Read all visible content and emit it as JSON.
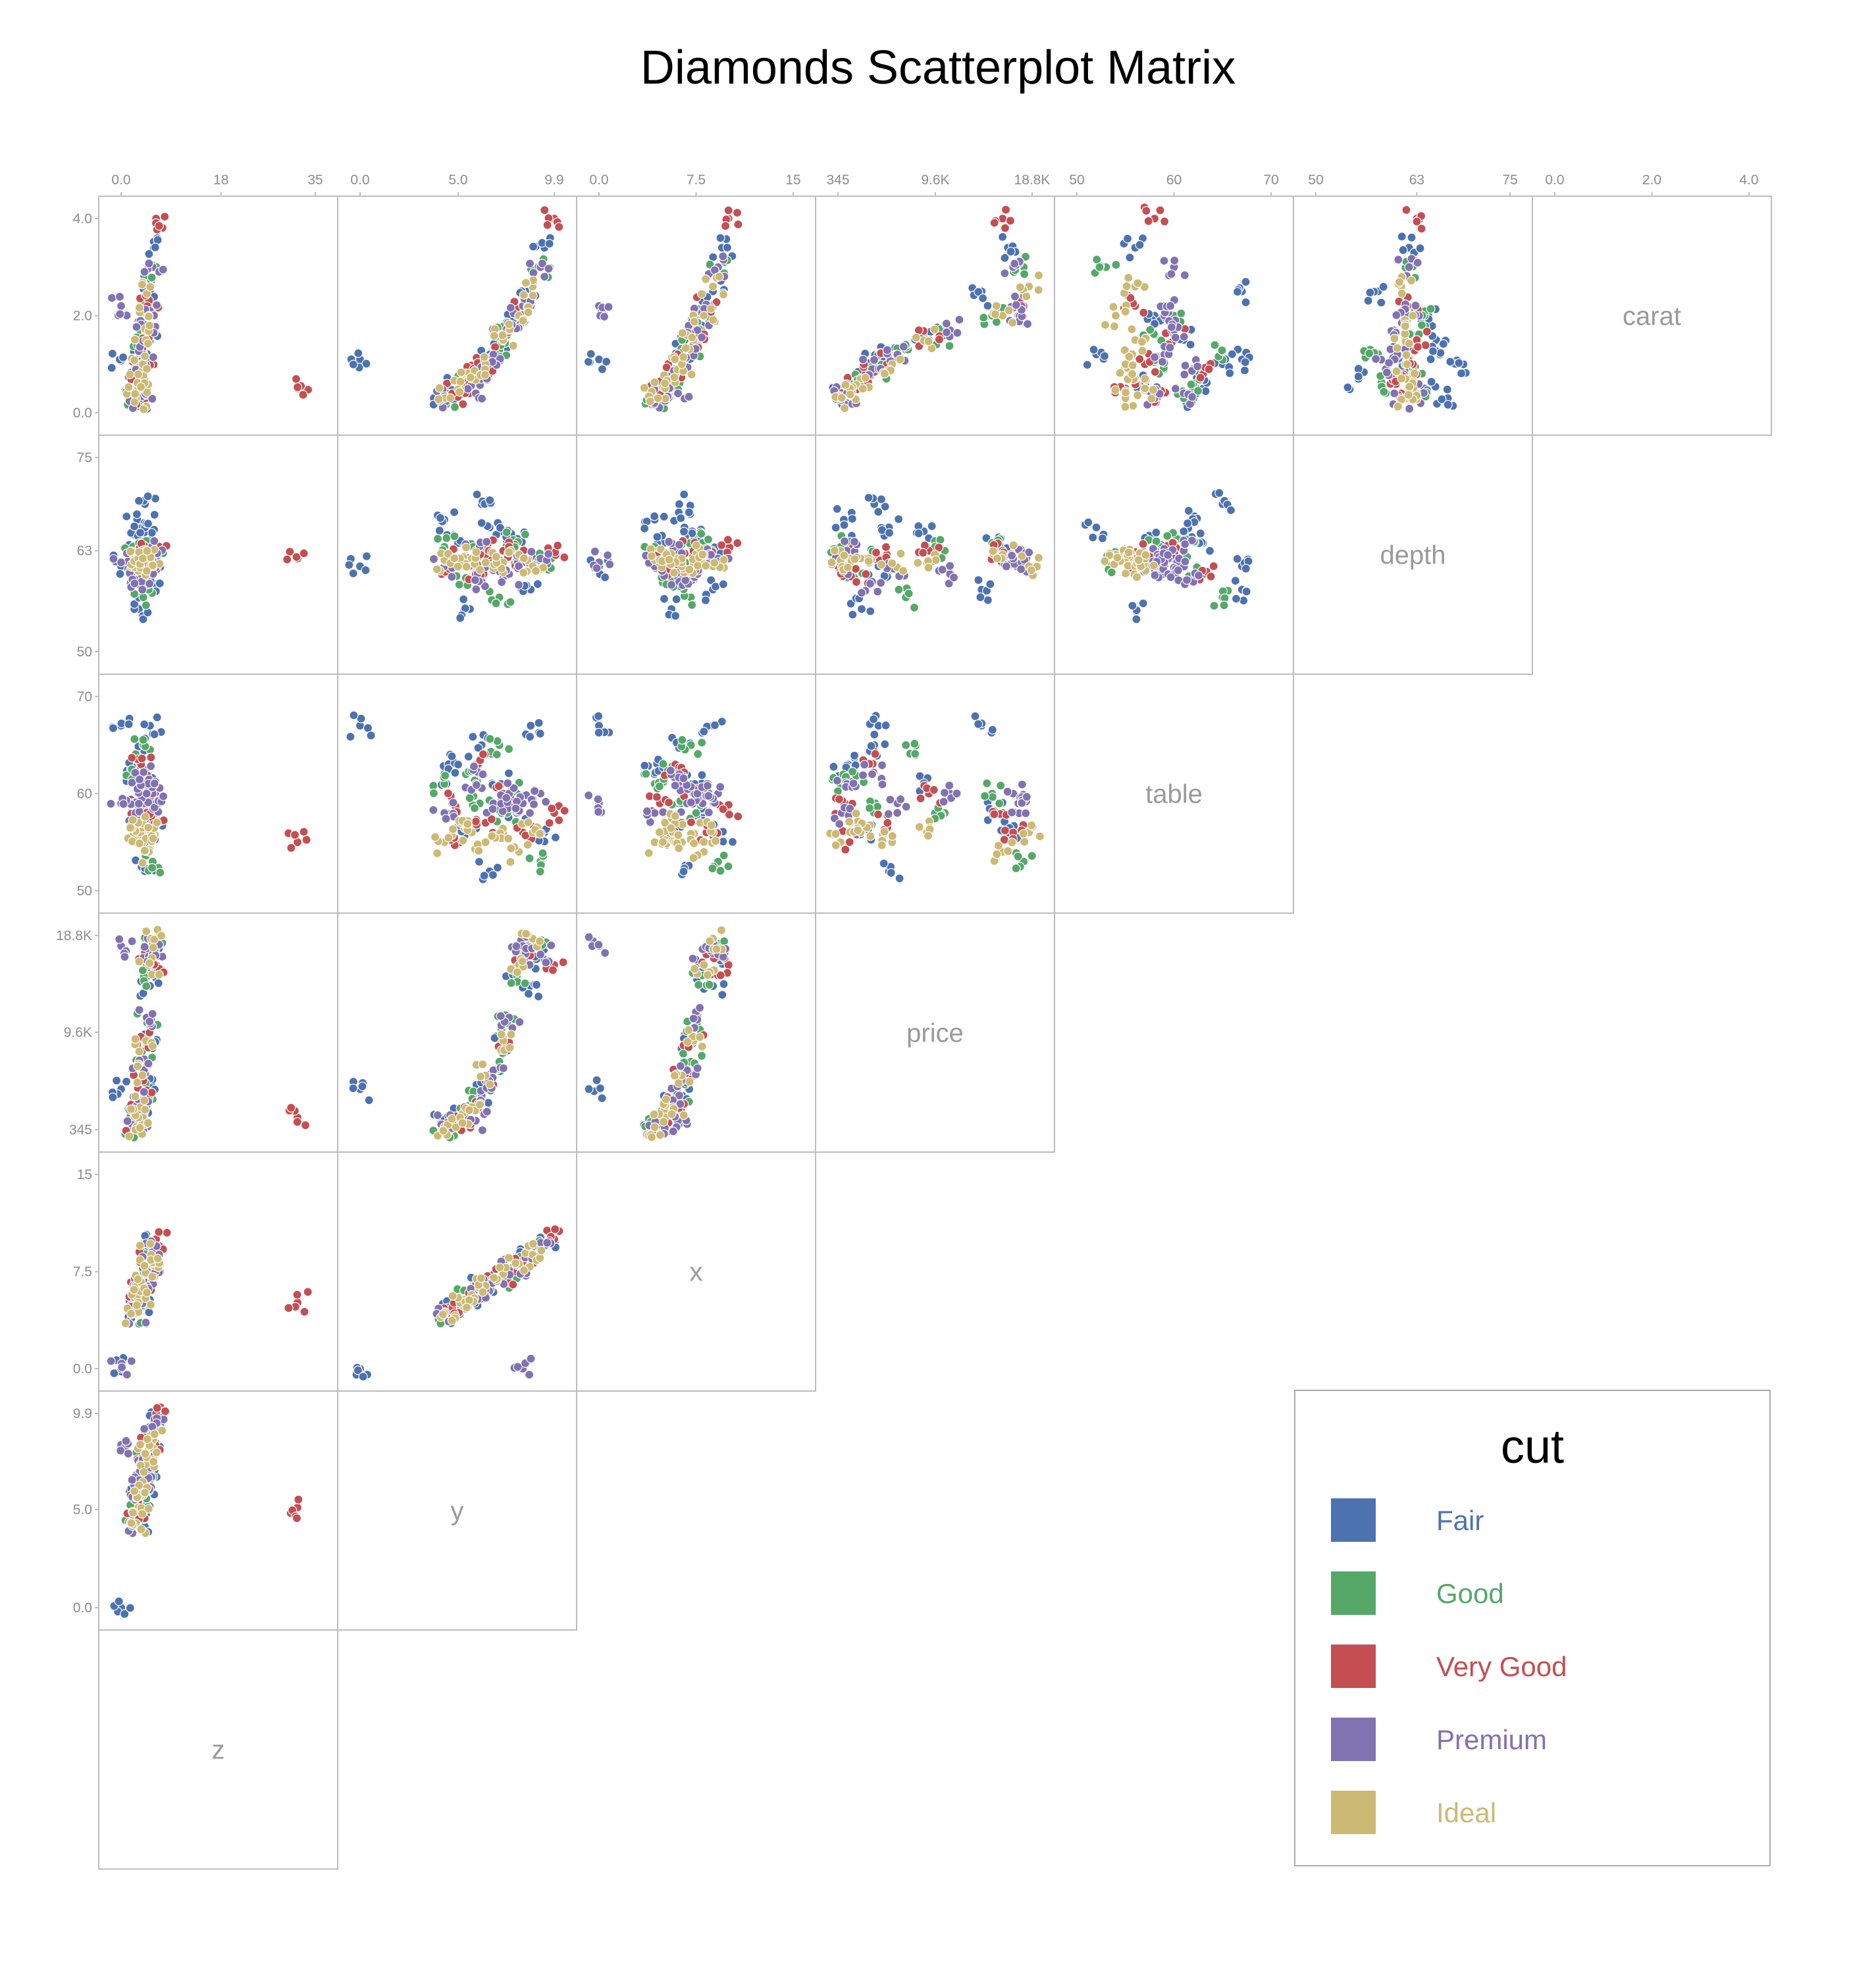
{
  "title": "Diamonds Scatterplot Matrix",
  "colors": {
    "Fair": "#4c72b0",
    "Good": "#55a868",
    "Very Good": "#c44e52",
    "Premium": "#8172b2",
    "Ideal": "#ccb974"
  },
  "chart_data": {
    "type": "scatter",
    "title": "Diamonds Scatterplot Matrix",
    "variables": [
      "carat",
      "depth",
      "table",
      "price",
      "x",
      "y",
      "z"
    ],
    "axes": {
      "carat": {
        "range": [
          0,
          4.0
        ],
        "ticks": [
          {
            "v": 0,
            "label": "0.0"
          },
          {
            "v": 2.0,
            "label": "2.0"
          },
          {
            "v": 4.0,
            "label": "4.0"
          }
        ]
      },
      "depth": {
        "range": [
          50,
          75
        ],
        "ticks": [
          {
            "v": 50,
            "label": "50"
          },
          {
            "v": 63,
            "label": "63"
          },
          {
            "v": 75,
            "label": "75"
          }
        ]
      },
      "table": {
        "range": [
          50,
          70
        ],
        "ticks": [
          {
            "v": 50,
            "label": "50"
          },
          {
            "v": 60,
            "label": "60"
          },
          {
            "v": 70,
            "label": "70"
          }
        ]
      },
      "price": {
        "range": [
          345,
          18800
        ],
        "ticks": [
          {
            "v": 345,
            "label": "345"
          },
          {
            "v": 9600,
            "label": "9.6K"
          },
          {
            "v": 18800,
            "label": "18.8K"
          }
        ]
      },
      "x": {
        "range": [
          0,
          15
        ],
        "ticks": [
          {
            "v": 0,
            "label": "0.0"
          },
          {
            "v": 7.5,
            "label": "7.5"
          },
          {
            "v": 15,
            "label": "15"
          }
        ]
      },
      "y": {
        "range": [
          0,
          9.9
        ],
        "ticks": [
          {
            "v": 0,
            "label": "0.0"
          },
          {
            "v": 5.0,
            "label": "5.0"
          },
          {
            "v": 9.9,
            "label": "9.9"
          }
        ]
      },
      "z": {
        "range": [
          0,
          35
        ],
        "ticks": [
          {
            "v": 0,
            "label": "0.0"
          },
          {
            "v": 18,
            "label": "18"
          },
          {
            "v": 35,
            "label": "35"
          }
        ]
      }
    },
    "legend": {
      "title": "cut",
      "placement": "bottom-right",
      "entries": [
        "Fair",
        "Good",
        "Very Good",
        "Premium",
        "Ideal"
      ]
    },
    "series": [
      {
        "name": "Fair",
        "color": "#4c72b0",
        "points": [
          {
            "carat": 1.1,
            "depth": 61.0,
            "table": 67,
            "price": 4200,
            "x": 0.0,
            "y": 0.0,
            "z": 0.0
          },
          {
            "carat": 3.4,
            "depth": 62.0,
            "table": 56,
            "price": 16500,
            "x": 9.5,
            "y": 9.4,
            "z": 5.9
          },
          {
            "carat": 0.3,
            "depth": 67.0,
            "table": 62,
            "price": 900,
            "x": 4.3,
            "y": 4.3,
            "z": 2.9
          },
          {
            "carat": 1.0,
            "depth": 69.0,
            "table": 65,
            "price": 3800,
            "x": 6.2,
            "y": 6.2,
            "z": 4.3
          },
          {
            "carat": 2.0,
            "depth": 64.5,
            "table": 58,
            "price": 15500,
            "x": 8.0,
            "y": 8.0,
            "z": 5.1
          },
          {
            "carat": 0.7,
            "depth": 55.5,
            "table": 56,
            "price": 2600,
            "x": 5.6,
            "y": 5.6,
            "z": 3.2
          },
          {
            "carat": 1.5,
            "depth": 65.5,
            "table": 61,
            "price": 8500,
            "x": 7.2,
            "y": 7.2,
            "z": 4.7
          },
          {
            "carat": 0.5,
            "depth": 64.0,
            "table": 63,
            "price": 1300,
            "x": 5.0,
            "y": 5.0,
            "z": 3.2
          },
          {
            "carat": 2.5,
            "depth": 58.0,
            "table": 67,
            "price": 14000,
            "x": 8.8,
            "y": 8.7,
            "z": 5.2
          },
          {
            "carat": 1.2,
            "depth": 66.0,
            "table": 52,
            "price": 5200,
            "x": 6.6,
            "y": 6.6,
            "z": 4.3
          }
        ]
      },
      {
        "name": "Good",
        "color": "#55a868",
        "points": [
          {
            "carat": 0.3,
            "depth": 63.5,
            "table": 61,
            "price": 600,
            "x": 4.3,
            "y": 4.3,
            "z": 2.7
          },
          {
            "carat": 0.9,
            "depth": 62.5,
            "table": 59,
            "price": 3900,
            "x": 6.1,
            "y": 6.1,
            "z": 3.8
          },
          {
            "carat": 1.3,
            "depth": 57.0,
            "table": 65,
            "price": 6800,
            "x": 7.1,
            "y": 7.1,
            "z": 4.0
          },
          {
            "carat": 2.0,
            "depth": 64.0,
            "table": 60,
            "price": 15000,
            "x": 8.0,
            "y": 8.0,
            "z": 5.1
          },
          {
            "carat": 0.6,
            "depth": 59.5,
            "table": 62,
            "price": 1900,
            "x": 5.4,
            "y": 5.4,
            "z": 3.2
          },
          {
            "carat": 1.6,
            "depth": 63.0,
            "table": 58,
            "price": 10500,
            "x": 7.5,
            "y": 7.5,
            "z": 4.7
          },
          {
            "carat": 3.0,
            "depth": 61.5,
            "table": 53,
            "price": 18000,
            "x": 9.2,
            "y": 9.2,
            "z": 5.7
          }
        ]
      },
      {
        "name": "Very Good",
        "color": "#c44e52",
        "points": [
          {
            "carat": 4.0,
            "depth": 63.0,
            "table": 58,
            "price": 16000,
            "x": 10.0,
            "y": 9.9,
            "z": 6.3
          },
          {
            "carat": 0.5,
            "depth": 62.0,
            "table": 55,
            "price": 1500,
            "x": 5.1,
            "y": 5.1,
            "z": 31.8
          },
          {
            "carat": 0.4,
            "depth": 61.0,
            "table": 59,
            "price": 1000,
            "x": 4.7,
            "y": 4.7,
            "z": 2.9
          },
          {
            "carat": 1.0,
            "depth": 62.5,
            "table": 57,
            "price": 5000,
            "x": 6.4,
            "y": 6.4,
            "z": 4.0
          },
          {
            "carat": 1.5,
            "depth": 63.0,
            "table": 60,
            "price": 9000,
            "x": 7.3,
            "y": 7.3,
            "z": 4.6
          },
          {
            "carat": 2.2,
            "depth": 61.8,
            "table": 56,
            "price": 17000,
            "x": 8.3,
            "y": 8.3,
            "z": 5.1
          },
          {
            "carat": 0.8,
            "depth": 60.0,
            "table": 63,
            "price": 3000,
            "x": 5.9,
            "y": 5.9,
            "z": 3.6
          }
        ]
      },
      {
        "name": "Premium",
        "color": "#8172b2",
        "points": [
          {
            "carat": 2.0,
            "depth": 62.0,
            "table": 59,
            "price": 17500,
            "x": 8.0,
            "y": 8.0,
            "z": 5.0
          },
          {
            "carat": 0.3,
            "depth": 61.0,
            "table": 58,
            "price": 700,
            "x": 4.3,
            "y": 4.3,
            "z": 2.6
          },
          {
            "carat": 1.2,
            "depth": 60.5,
            "table": 59,
            "price": 6000,
            "x": 6.8,
            "y": 6.8,
            "z": 4.1
          },
          {
            "carat": 3.0,
            "depth": 62.0,
            "table": 60,
            "price": 17000,
            "x": 9.2,
            "y": 9.2,
            "z": 5.7
          },
          {
            "carat": 0.4,
            "depth": 63.0,
            "table": 61,
            "price": 1200,
            "x": 6.1,
            "y": 5.9,
            "z": 4.3
          },
          {
            "carat": 2.2,
            "depth": 61.5,
            "table": 59,
            "price": 17800,
            "x": 0.0,
            "y": 8.3,
            "z": 0.0
          },
          {
            "carat": 1.7,
            "depth": 60.0,
            "table": 60,
            "price": 11000,
            "x": 7.6,
            "y": 7.6,
            "z": 4.6
          },
          {
            "carat": 0.9,
            "depth": 59.0,
            "table": 62,
            "price": 3600,
            "x": 6.2,
            "y": 6.2,
            "z": 3.7
          }
        ]
      },
      {
        "name": "Ideal",
        "color": "#ccb974",
        "points": [
          {
            "carat": 1.5,
            "depth": 61.5,
            "table": 56,
            "price": 8800,
            "x": 7.3,
            "y": 7.3,
            "z": 4.5
          },
          {
            "carat": 0.3,
            "depth": 61.8,
            "table": 55,
            "price": 600,
            "x": 4.3,
            "y": 4.3,
            "z": 2.7
          },
          {
            "carat": 0.7,
            "depth": 62.0,
            "table": 56,
            "price": 2500,
            "x": 5.7,
            "y": 5.7,
            "z": 3.5
          },
          {
            "carat": 1.0,
            "depth": 61.5,
            "table": 55,
            "price": 5500,
            "x": 6.4,
            "y": 6.4,
            "z": 3.9
          },
          {
            "carat": 2.0,
            "depth": 62.5,
            "table": 54,
            "price": 16000,
            "x": 8.1,
            "y": 8.1,
            "z": 5.0
          },
          {
            "carat": 2.6,
            "depth": 61.0,
            "table": 56,
            "price": 18500,
            "x": 8.8,
            "y": 8.8,
            "z": 5.4
          },
          {
            "carat": 0.5,
            "depth": 62.0,
            "table": 57,
            "price": 1500,
            "x": 5.1,
            "y": 5.1,
            "z": 3.1
          }
        ]
      }
    ]
  }
}
